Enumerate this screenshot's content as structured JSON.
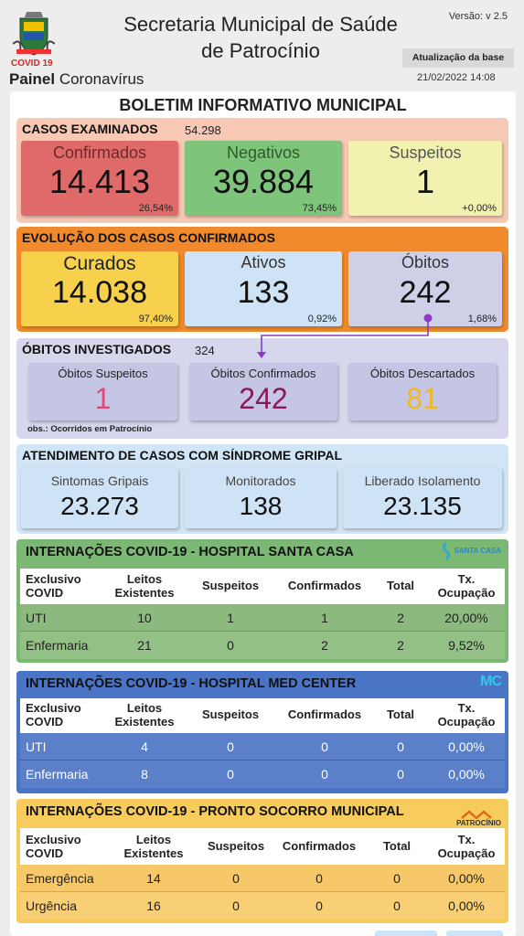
{
  "header": {
    "covid_tag": "COVID 19",
    "painel_bold": "Painel",
    "painel_rest": " Coronavírus",
    "title_line1": "Secretaria Municipal de Saúde",
    "title_line2": "de Patrocínio",
    "version": "Versão: v 2.5",
    "update_button": "Atualização da base",
    "update_date": "21/02/2022 14:08"
  },
  "board_title": "BOLETIM INFORMATIVO MUNICIPAL",
  "casos": {
    "title": "CASOS EXAMINADOS",
    "total": "54.298",
    "cards": [
      {
        "label": "Confirmados",
        "value": "14.413",
        "pct": "26,54%"
      },
      {
        "label": "Negativos",
        "value": "39.884",
        "pct": "73,45%"
      },
      {
        "label": "Suspeitos",
        "value": "1",
        "pct": "+0,00%"
      }
    ]
  },
  "evolucao": {
    "title": "EVOLUÇÃO DOS CASOS CONFIRMADOS",
    "cards": [
      {
        "label": "Curados",
        "value": "14.038",
        "pct": "97,40%"
      },
      {
        "label": "Ativos",
        "value": "133",
        "pct": "0,92%"
      },
      {
        "label": "Óbitos",
        "value": "242",
        "pct": "1,68%"
      }
    ]
  },
  "obitos": {
    "title": "ÓBITOS INVESTIGADOS",
    "total": "324",
    "note": "obs.: Ocorridos em Patrocínio",
    "cards": [
      {
        "label": "Óbitos Suspeitos",
        "value": "1"
      },
      {
        "label": "Óbitos Confirmados",
        "value": "242"
      },
      {
        "label": "Óbitos Descartados",
        "value": "81"
      }
    ]
  },
  "atendimento": {
    "title": "ATENDIMENTO DE CASOS COM SÍNDROME GRIPAL",
    "cards": [
      {
        "label": "Sintomas Gripais",
        "value": "23.273"
      },
      {
        "label": "Monitorados",
        "value": "138"
      },
      {
        "label": "Liberado Isolamento",
        "value": "23.135"
      }
    ]
  },
  "tables": [
    {
      "title": "INTERNAÇÕES COVID-19 - HOSPITAL SANTA CASA",
      "logo": "SANTA CASA",
      "headers": [
        "Exclusivo COVID",
        "Leitos Existentes",
        "Suspeitos",
        "Confirmados",
        "Total",
        "Tx. Ocupação"
      ],
      "rows": [
        [
          "UTI",
          "10",
          "1",
          "1",
          "2",
          "20,00%"
        ],
        [
          "Enfermaria",
          "21",
          "0",
          "2",
          "2",
          "9,52%"
        ]
      ]
    },
    {
      "title": "INTERNAÇÕES COVID-19 - HOSPITAL MED CENTER",
      "logo": "MC",
      "headers": [
        "Exclusivo COVID",
        "Leitos Existentes",
        "Suspeitos",
        "Confirmados",
        "Total",
        "Tx. Ocupação"
      ],
      "rows": [
        [
          "UTI",
          "4",
          "0",
          "0",
          "0",
          "0,00%"
        ],
        [
          "Enfermaria",
          "8",
          "0",
          "0",
          "0",
          "0,00%"
        ]
      ]
    },
    {
      "title": "INTERNAÇÕES COVID-19 - PRONTO SOCORRO MUNICIPAL",
      "logo": "PATROCÍNIO",
      "headers": [
        "Exclusivo COVID",
        "Leitos Existentes",
        "Suspeitos",
        "Confirmados",
        "Total",
        "Tx. Ocupação"
      ],
      "rows": [
        [
          "Emergência",
          "14",
          "0",
          "0",
          "0",
          "0,00%"
        ],
        [
          "Urgência",
          "16",
          "0",
          "0",
          "0",
          "0,00%"
        ]
      ]
    }
  ]
}
